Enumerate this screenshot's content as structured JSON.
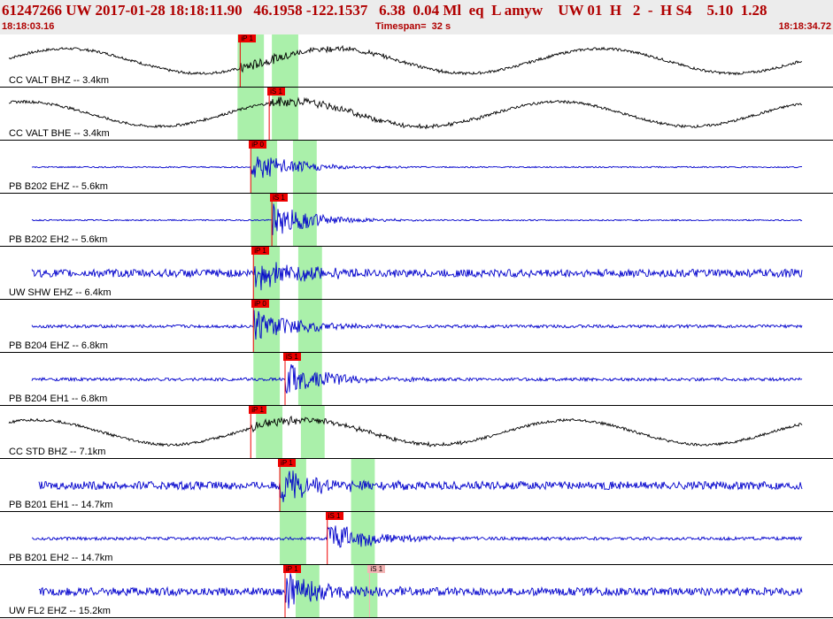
{
  "header": {
    "main_line": "61247266 UW 2017-01-28 18:18:11.90   46.1958 -122.1537   6.38  0.04 Ml  eq  L amyw    UW 01  H   2  -  H S4    5.10  1.28",
    "start_time": "18:18:03.16",
    "timespan": "Timespan=  32 s",
    "end_time": "18:18:34.72"
  },
  "colors": {
    "header_text": "#b00000",
    "header_bg": "#ececec",
    "trace_black": "#000000",
    "trace_blue": "#0000cc",
    "pick_red": "#ee0000",
    "pick_pink": "#f4b4b4",
    "window_green": "#aaf0aa"
  },
  "time_window": {
    "start_s": 0,
    "end_s": 31.56
  },
  "panels": [
    {
      "label": "CC VALT BHZ -- 3.4km",
      "color": "black",
      "type": "long_period",
      "picks": [
        {
          "label": "iP 1",
          "t": 9.1,
          "style": "red"
        }
      ],
      "windows": [
        [
          9.0,
          10.0
        ],
        [
          10.3,
          11.3
        ]
      ]
    },
    {
      "label": "CC VALT BHE -- 3.4km",
      "color": "black",
      "type": "long_period",
      "picks": [
        {
          "label": "iS 1",
          "t": 10.2,
          "style": "red"
        }
      ],
      "windows": [
        [
          9.0,
          10.0
        ],
        [
          10.3,
          11.3
        ]
      ]
    },
    {
      "label": "PB B202 EHZ -- 5.6km",
      "color": "blue",
      "type": "quiet",
      "picks": [
        {
          "label": "iP 0",
          "t": 9.5,
          "style": "red"
        }
      ],
      "windows": [
        [
          9.5,
          10.5
        ],
        [
          11.1,
          12.0
        ]
      ]
    },
    {
      "label": "PB B202 EH2 -- 5.6km",
      "color": "blue",
      "type": "quiet",
      "picks": [
        {
          "label": "iS 1",
          "t": 10.3,
          "style": "red"
        }
      ],
      "windows": [
        [
          9.5,
          10.5
        ],
        [
          11.1,
          12.0
        ]
      ]
    },
    {
      "label": "UW SHW EHZ -- 6.4km",
      "color": "blue",
      "type": "noisy",
      "picks": [
        {
          "label": "iP 1",
          "t": 9.6,
          "style": "red"
        }
      ],
      "windows": [
        [
          9.6,
          10.6
        ],
        [
          11.3,
          12.2
        ]
      ]
    },
    {
      "label": "PB B204 EHZ -- 6.8km",
      "color": "blue",
      "type": "medium",
      "picks": [
        {
          "label": "iP 0",
          "t": 9.6,
          "style": "red"
        }
      ],
      "windows": [
        [
          9.6,
          10.6
        ],
        [
          11.3,
          12.2
        ]
      ]
    },
    {
      "label": "PB B204 EH1 -- 6.8km",
      "color": "blue",
      "type": "medium",
      "picks": [
        {
          "label": "iS 1",
          "t": 10.8,
          "style": "red"
        }
      ],
      "windows": [
        [
          9.6,
          10.6
        ],
        [
          11.3,
          12.2
        ]
      ]
    },
    {
      "label": "CC STD BHZ -- 7.1km",
      "color": "black",
      "type": "long_period",
      "picks": [
        {
          "label": "iP 1",
          "t": 9.5,
          "style": "red"
        }
      ],
      "windows": [
        [
          9.7,
          10.7
        ],
        [
          11.4,
          12.3
        ]
      ]
    },
    {
      "label": "PB B201 EH1 -- 14.7km",
      "color": "blue",
      "type": "noisy",
      "picks": [
        {
          "label": "iP 1",
          "t": 10.6,
          "style": "red"
        }
      ],
      "windows": [
        [
          10.6,
          11.6
        ],
        [
          13.3,
          14.2
        ]
      ]
    },
    {
      "label": "PB B201 EH2 -- 14.7km",
      "color": "blue",
      "type": "medium",
      "picks": [
        {
          "label": "iS 1",
          "t": 12.4,
          "style": "red"
        }
      ],
      "windows": [
        [
          10.6,
          11.6
        ],
        [
          13.3,
          14.2
        ]
      ]
    },
    {
      "label": "UW FL2 EHZ -- 15.2km",
      "color": "blue",
      "type": "noisy",
      "picks": [
        {
          "label": "iP 1",
          "t": 10.8,
          "style": "red"
        },
        {
          "label": "iS 1",
          "t": 14.0,
          "style": "pink"
        }
      ],
      "windows": [
        [
          11.2,
          12.1
        ],
        [
          13.4,
          14.3
        ]
      ]
    }
  ]
}
